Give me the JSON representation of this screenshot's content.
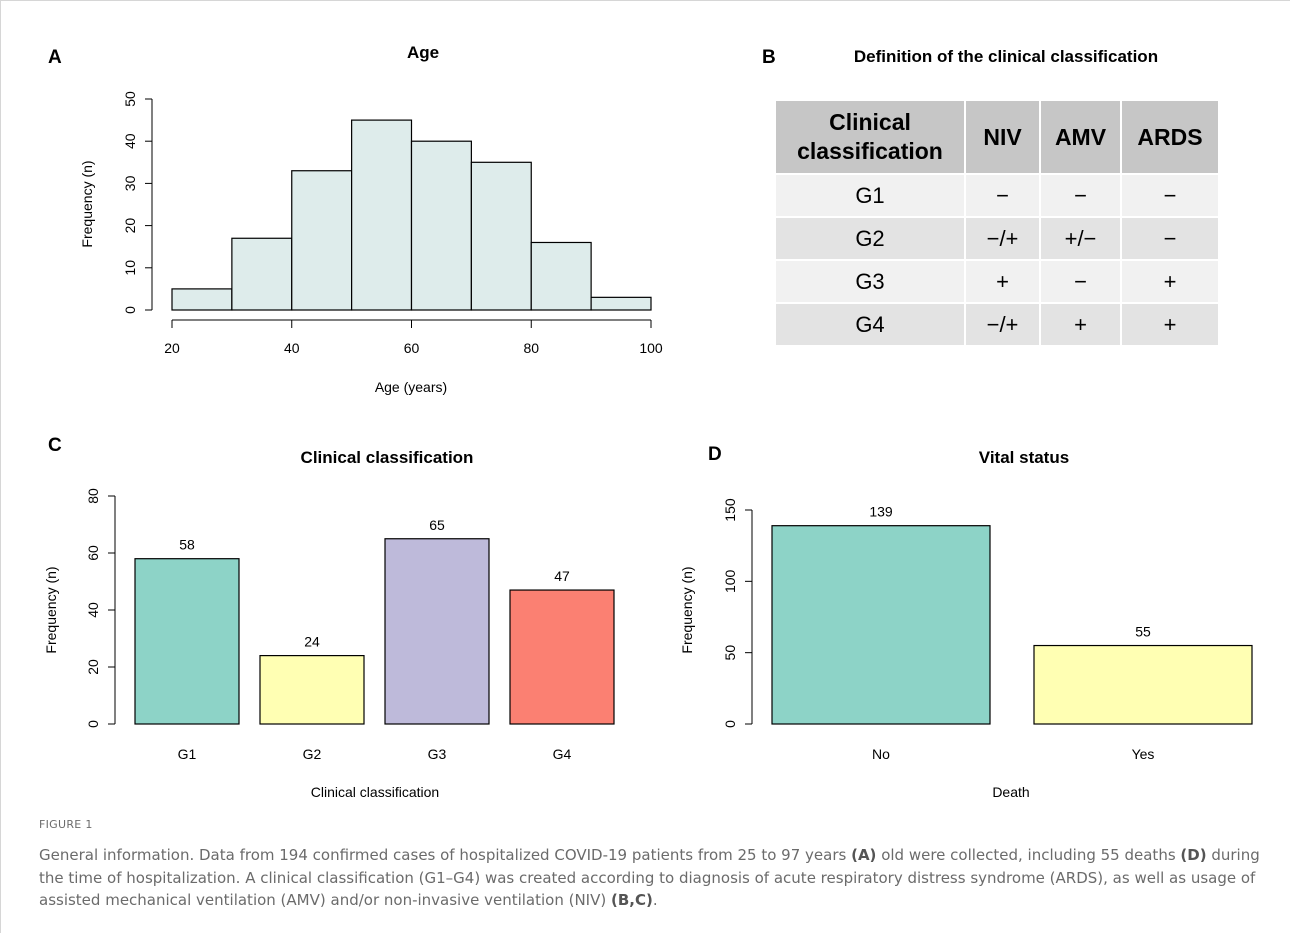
{
  "panels": {
    "a": {
      "letter": "A"
    },
    "b": {
      "letter": "B",
      "title": "Definition of the clinical classification"
    },
    "c": {
      "letter": "C"
    },
    "d": {
      "letter": "D"
    }
  },
  "table": {
    "headers": [
      "Clinical classification",
      "NIV",
      "AMV",
      "ARDS"
    ],
    "rows": [
      [
        "G1",
        "−",
        "−",
        "−"
      ],
      [
        "G2",
        "−/+",
        "+/−",
        "−"
      ],
      [
        "G3",
        "+",
        "−",
        "+"
      ],
      [
        "G4",
        "−/+",
        "+",
        "+"
      ]
    ]
  },
  "chart_data": [
    {
      "type": "bar",
      "subtype": "histogram",
      "title": "Age",
      "xlabel": "Age (years)",
      "ylabel": "Frequency (n)",
      "bin_edges": [
        20,
        30,
        40,
        50,
        60,
        70,
        80,
        90,
        100
      ],
      "values": [
        5,
        17,
        33,
        45,
        40,
        35,
        16,
        3
      ],
      "xticks": [
        20,
        40,
        60,
        80,
        100
      ],
      "yticks": [
        0,
        10,
        20,
        30,
        40,
        50
      ],
      "xlim": [
        20,
        100
      ],
      "ylim": [
        0,
        50
      ],
      "color": "#deeceb"
    },
    {
      "type": "bar",
      "title": "Clinical classification",
      "xlabel": "Clinical classification",
      "ylabel": "Frequency (n)",
      "categories": [
        "G1",
        "G2",
        "G3",
        "G4"
      ],
      "values": [
        58,
        24,
        65,
        47
      ],
      "yticks": [
        0,
        20,
        40,
        60,
        80
      ],
      "ylim": [
        0,
        80
      ],
      "colors": [
        "#8dd3c7",
        "#ffffb3",
        "#bebada",
        "#fb8072"
      ]
    },
    {
      "type": "bar",
      "title": "Vital status",
      "xlabel": "Death",
      "ylabel": "Frequency (n)",
      "categories": [
        "No",
        "Yes"
      ],
      "values": [
        139,
        55
      ],
      "yticks": [
        0,
        50,
        100,
        150
      ],
      "ylim": [
        0,
        150
      ],
      "colors": [
        "#8dd3c7",
        "#ffffb3"
      ]
    }
  ],
  "caption": {
    "label": "FIGURE 1",
    "parts": [
      {
        "t": "General information. Data from 194 confirmed cases of hospitalized COVID-19 patients from 25 to 97 years ",
        "b": false
      },
      {
        "t": "(A)",
        "b": true
      },
      {
        "t": " old were collected, including 55 deaths ",
        "b": false
      },
      {
        "t": "(D)",
        "b": true
      },
      {
        "t": " during the time of hospitalization. A clinical classification (G1–G4) was created according to diagnosis of acute respiratory distress syndrome (ARDS), as well as usage of assisted mechanical ventilation (AMV) and/or non-invasive ventilation (NIV) ",
        "b": false
      },
      {
        "t": "(B,C)",
        "b": true
      },
      {
        "t": ".",
        "b": false
      }
    ]
  }
}
